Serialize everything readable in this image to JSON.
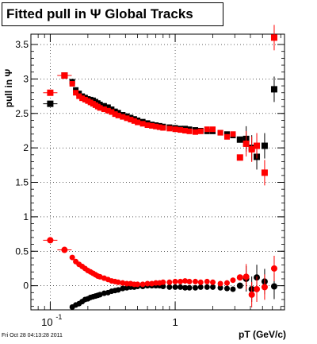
{
  "chart_data": {
    "type": "scatter",
    "title": "Fitted pull in  Ψ   Global Tracks",
    "xlabel": "pT (GeV/c)",
    "ylabel": "pull in Ψ",
    "xscale": "log",
    "xlim": [
      0.07,
      7.5
    ],
    "ylim": [
      -0.35,
      3.65
    ],
    "grid": true,
    "x_major_ticks": [
      {
        "v": 0.1,
        "b": "10",
        "e": "-1"
      },
      {
        "v": 1,
        "b": "1",
        "e": ""
      }
    ],
    "y_ticks": [
      {
        "v": 0,
        "t": "0"
      },
      {
        "v": 0.5,
        "t": "0.5"
      },
      {
        "v": 1,
        "t": "1"
      },
      {
        "v": 1.5,
        "t": "1.5"
      },
      {
        "v": 2,
        "t": "2"
      },
      {
        "v": 2.5,
        "t": "2.5"
      },
      {
        "v": 3,
        "t": "3"
      },
      {
        "v": 3.5,
        "t": "3.5"
      }
    ],
    "series": [
      {
        "color": "#000000",
        "marker": "square",
        "points": [
          [
            0.1,
            2.64
          ],
          [
            0.13,
            3.05
          ],
          [
            0.15,
            2.96
          ],
          [
            0.16,
            2.84
          ],
          [
            0.17,
            2.79
          ],
          [
            0.18,
            2.75
          ],
          [
            0.19,
            2.73
          ],
          [
            0.2,
            2.71
          ],
          [
            0.21,
            2.7
          ],
          [
            0.22,
            2.69
          ],
          [
            0.23,
            2.67
          ],
          [
            0.24,
            2.65
          ],
          [
            0.25,
            2.63
          ],
          [
            0.27,
            2.61
          ],
          [
            0.29,
            2.59
          ],
          [
            0.31,
            2.56
          ],
          [
            0.33,
            2.53
          ],
          [
            0.35,
            2.51
          ],
          [
            0.38,
            2.48
          ],
          [
            0.41,
            2.46
          ],
          [
            0.44,
            2.44
          ],
          [
            0.47,
            2.42
          ],
          [
            0.5,
            2.4
          ],
          [
            0.55,
            2.38
          ],
          [
            0.6,
            2.36
          ],
          [
            0.65,
            2.34
          ],
          [
            0.7,
            2.33
          ],
          [
            0.75,
            2.32
          ],
          [
            0.8,
            2.31
          ],
          [
            0.9,
            2.3
          ],
          [
            1.0,
            2.29
          ],
          [
            1.1,
            2.28
          ],
          [
            1.2,
            2.28
          ],
          [
            1.3,
            2.27
          ],
          [
            1.45,
            2.26
          ],
          [
            1.6,
            2.25
          ],
          [
            1.8,
            2.24
          ],
          [
            2.0,
            2.24
          ],
          [
            2.3,
            2.22
          ],
          [
            2.6,
            2.2
          ],
          [
            2.9,
            2.18
          ],
          [
            3.3,
            2.12
          ],
          [
            3.7,
            2.13
          ],
          [
            4.1,
            2.0
          ],
          [
            4.5,
            1.87
          ],
          [
            5.2,
            2.03
          ],
          [
            6.2,
            2.85
          ]
        ]
      },
      {
        "color": "#000000",
        "marker": "circle",
        "points": [
          [
            0.15,
            -0.31
          ],
          [
            0.16,
            -0.28
          ],
          [
            0.17,
            -0.26
          ],
          [
            0.18,
            -0.23
          ],
          [
            0.19,
            -0.2
          ],
          [
            0.2,
            -0.19
          ],
          [
            0.21,
            -0.17
          ],
          [
            0.22,
            -0.16
          ],
          [
            0.23,
            -0.15
          ],
          [
            0.24,
            -0.14
          ],
          [
            0.25,
            -0.13
          ],
          [
            0.27,
            -0.11
          ],
          [
            0.29,
            -0.1
          ],
          [
            0.31,
            -0.08
          ],
          [
            0.33,
            -0.07
          ],
          [
            0.35,
            -0.06
          ],
          [
            0.38,
            -0.04
          ],
          [
            0.41,
            -0.03
          ],
          [
            0.44,
            -0.02
          ],
          [
            0.47,
            -0.02
          ],
          [
            0.5,
            -0.01
          ],
          [
            0.55,
            -0.01
          ],
          [
            0.6,
            0.0
          ],
          [
            0.65,
            0.0
          ],
          [
            0.7,
            0.0
          ],
          [
            0.75,
            0.0
          ],
          [
            0.8,
            -0.01
          ],
          [
            0.9,
            -0.02
          ],
          [
            1.0,
            -0.02
          ],
          [
            1.1,
            -0.02
          ],
          [
            1.2,
            -0.03
          ],
          [
            1.3,
            -0.03
          ],
          [
            1.45,
            -0.03
          ],
          [
            1.6,
            -0.02
          ],
          [
            1.8,
            -0.02
          ],
          [
            2.0,
            -0.02
          ],
          [
            2.3,
            -0.03
          ],
          [
            2.6,
            -0.04
          ],
          [
            2.9,
            -0.05
          ],
          [
            3.3,
            0.0
          ],
          [
            3.7,
            0.1
          ],
          [
            4.1,
            -0.05
          ],
          [
            4.5,
            0.12
          ],
          [
            5.2,
            0.06
          ],
          [
            6.2,
            -0.01
          ]
        ]
      },
      {
        "color": "#ff0000",
        "marker": "square",
        "points": [
          [
            0.1,
            2.8
          ],
          [
            0.13,
            3.05
          ],
          [
            0.15,
            2.93
          ],
          [
            0.16,
            2.8
          ],
          [
            0.17,
            2.75
          ],
          [
            0.18,
            2.72
          ],
          [
            0.19,
            2.7
          ],
          [
            0.2,
            2.68
          ],
          [
            0.21,
            2.66
          ],
          [
            0.22,
            2.64
          ],
          [
            0.23,
            2.62
          ],
          [
            0.24,
            2.6
          ],
          [
            0.25,
            2.58
          ],
          [
            0.27,
            2.56
          ],
          [
            0.29,
            2.54
          ],
          [
            0.31,
            2.52
          ],
          [
            0.33,
            2.49
          ],
          [
            0.35,
            2.47
          ],
          [
            0.38,
            2.45
          ],
          [
            0.41,
            2.43
          ],
          [
            0.44,
            2.41
          ],
          [
            0.47,
            2.39
          ],
          [
            0.5,
            2.37
          ],
          [
            0.55,
            2.35
          ],
          [
            0.6,
            2.33
          ],
          [
            0.65,
            2.32
          ],
          [
            0.7,
            2.31
          ],
          [
            0.75,
            2.3
          ],
          [
            0.8,
            2.29
          ],
          [
            0.9,
            2.28
          ],
          [
            1.0,
            2.27
          ],
          [
            1.1,
            2.26
          ],
          [
            1.2,
            2.25
          ],
          [
            1.3,
            2.24
          ],
          [
            1.45,
            2.23
          ],
          [
            1.6,
            2.24
          ],
          [
            1.8,
            2.27
          ],
          [
            2.0,
            2.27
          ],
          [
            2.3,
            2.22
          ],
          [
            2.6,
            2.16
          ],
          [
            2.9,
            2.2
          ],
          [
            3.3,
            1.86
          ],
          [
            3.7,
            2.06
          ],
          [
            4.1,
            1.98
          ],
          [
            4.5,
            2.03
          ],
          [
            5.2,
            1.64
          ],
          [
            6.2,
            3.6
          ]
        ]
      },
      {
        "color": "#ff0000",
        "marker": "circle",
        "points": [
          [
            0.1,
            0.66
          ],
          [
            0.13,
            0.52
          ],
          [
            0.15,
            0.41
          ],
          [
            0.16,
            0.35
          ],
          [
            0.17,
            0.31
          ],
          [
            0.18,
            0.28
          ],
          [
            0.19,
            0.25
          ],
          [
            0.2,
            0.22
          ],
          [
            0.21,
            0.2
          ],
          [
            0.22,
            0.18
          ],
          [
            0.23,
            0.16
          ],
          [
            0.24,
            0.14
          ],
          [
            0.25,
            0.13
          ],
          [
            0.27,
            0.11
          ],
          [
            0.29,
            0.09
          ],
          [
            0.31,
            0.07
          ],
          [
            0.33,
            0.06
          ],
          [
            0.35,
            0.05
          ],
          [
            0.38,
            0.04
          ],
          [
            0.41,
            0.03
          ],
          [
            0.44,
            0.03
          ],
          [
            0.47,
            0.02
          ],
          [
            0.5,
            0.02
          ],
          [
            0.55,
            0.02
          ],
          [
            0.6,
            0.03
          ],
          [
            0.65,
            0.03
          ],
          [
            0.7,
            0.04
          ],
          [
            0.75,
            0.04
          ],
          [
            0.8,
            0.05
          ],
          [
            0.9,
            0.05
          ],
          [
            1.0,
            0.06
          ],
          [
            1.1,
            0.06
          ],
          [
            1.2,
            0.07
          ],
          [
            1.3,
            0.06
          ],
          [
            1.45,
            0.06
          ],
          [
            1.6,
            0.05
          ],
          [
            1.8,
            0.06
          ],
          [
            2.0,
            0.05
          ],
          [
            2.3,
            0.03
          ],
          [
            2.6,
            0.04
          ],
          [
            2.9,
            0.08
          ],
          [
            3.3,
            0.12
          ],
          [
            3.7,
            0.13
          ],
          [
            4.1,
            -0.13
          ],
          [
            4.5,
            -0.05
          ],
          [
            5.2,
            -0.02
          ],
          [
            6.2,
            0.25
          ]
        ]
      }
    ]
  },
  "footer": {
    "date": "Fri Oct 28 04:13:28 2011"
  }
}
